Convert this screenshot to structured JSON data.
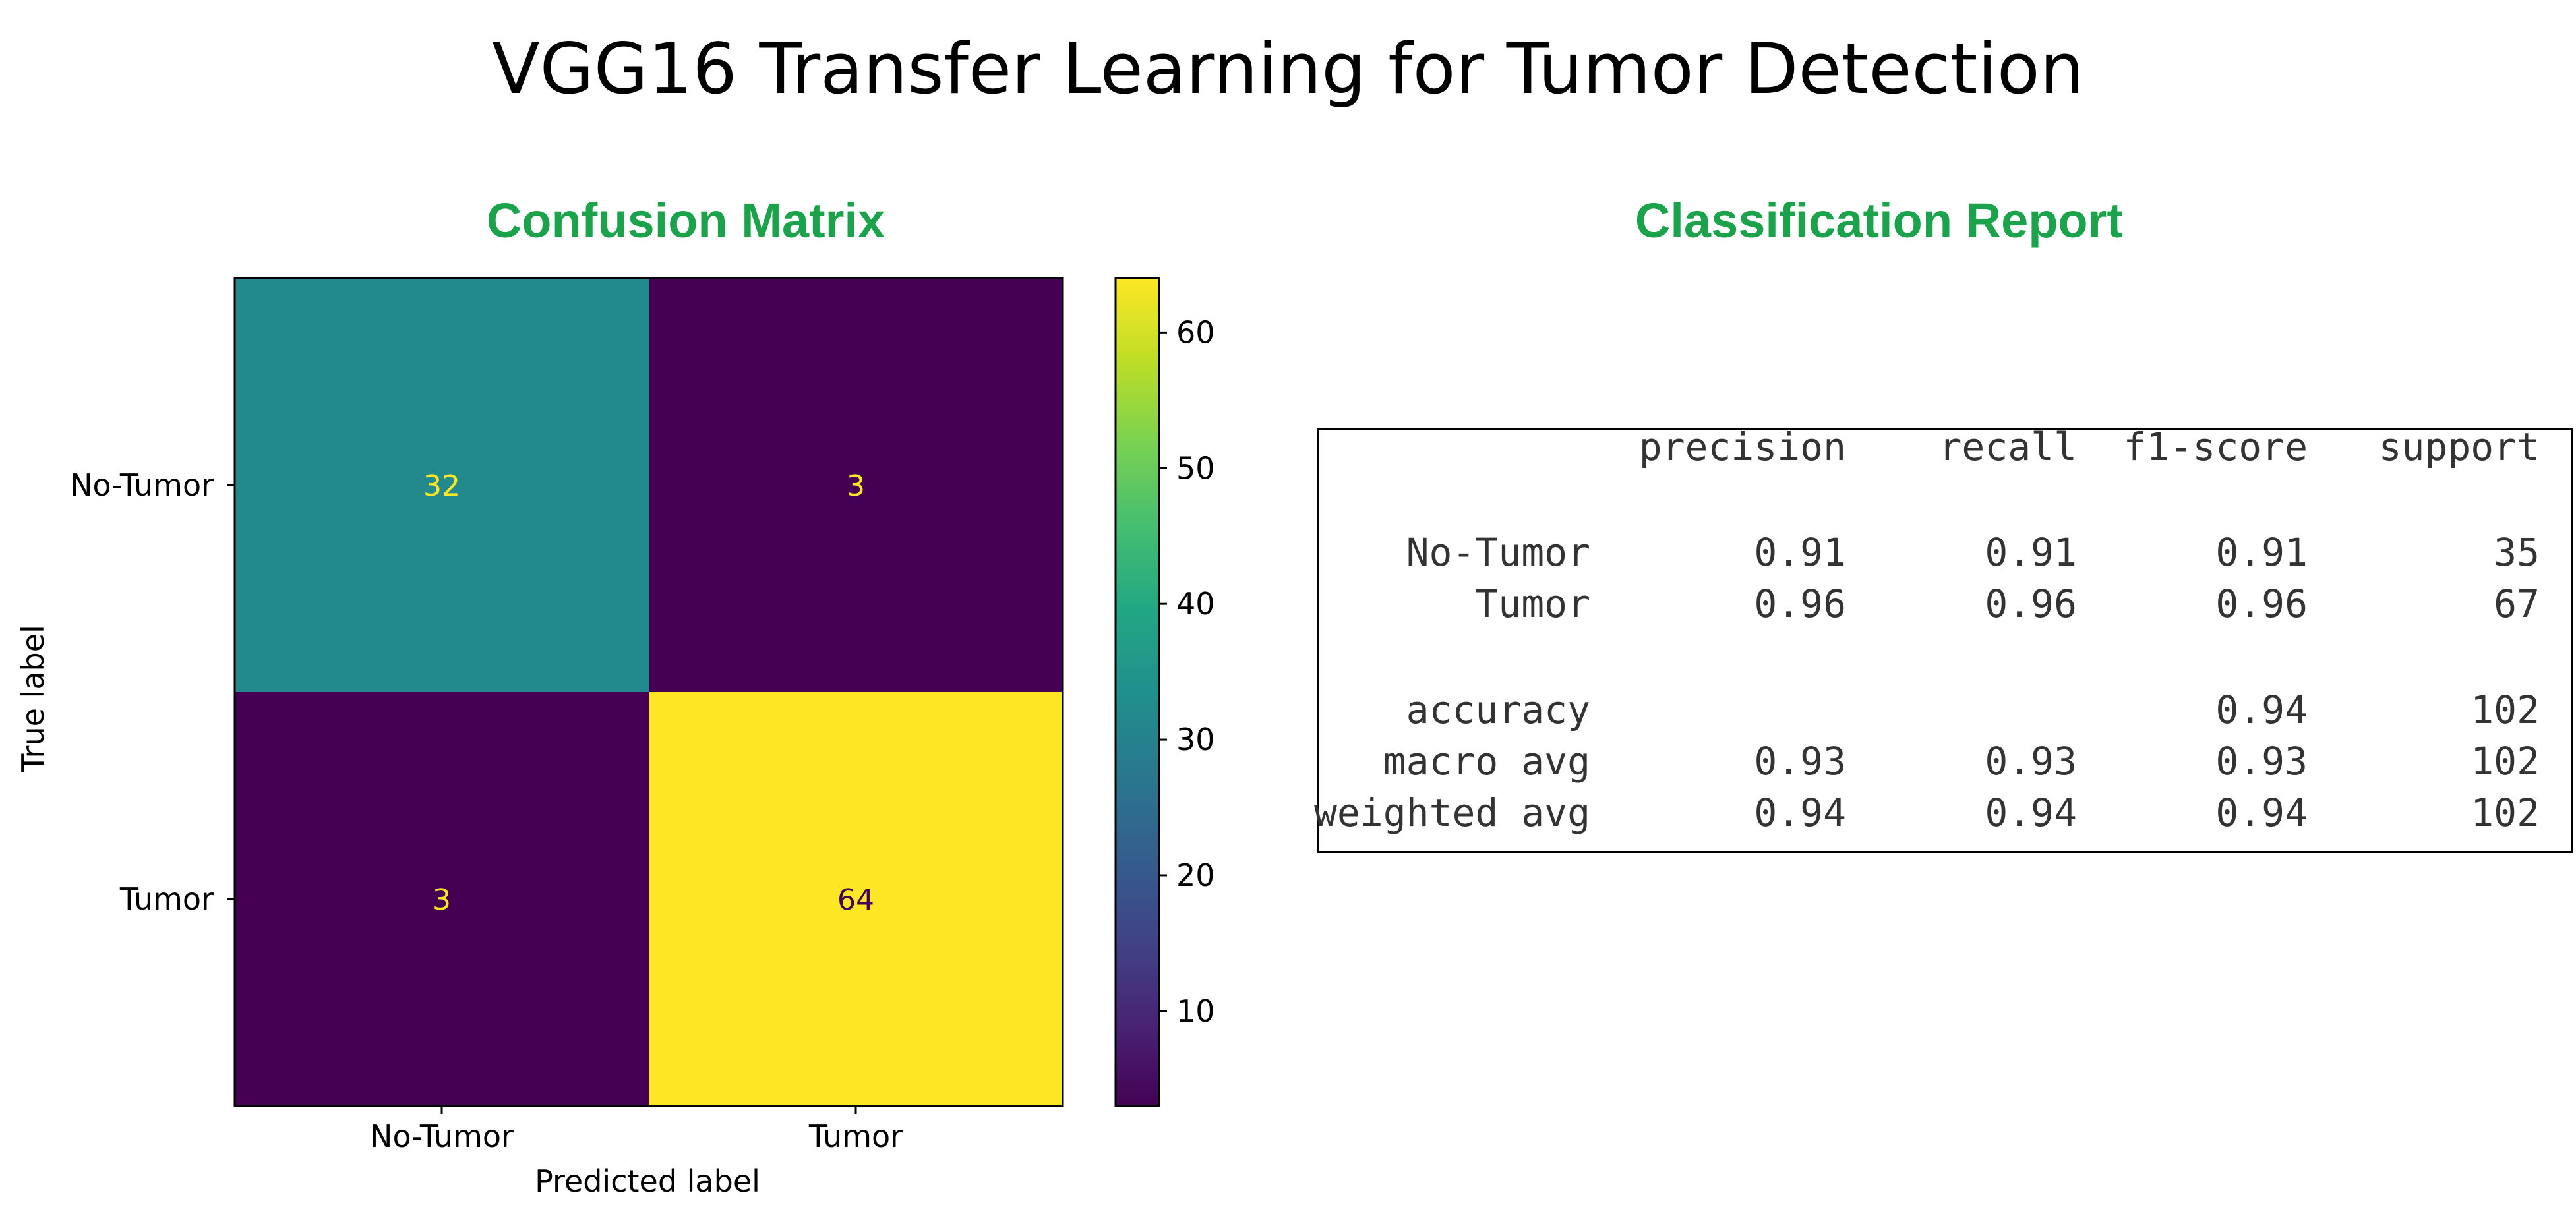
{
  "title": "VGG16 Transfer Learning for Tumor Detection",
  "confusion_title": "Confusion Matrix",
  "report_title": "Classification Report",
  "colors": {
    "section_title": "#1aa34a",
    "low": "#440154",
    "mid": "#21908d",
    "high": "#fde725"
  },
  "chart_data": [
    {
      "type": "heatmap",
      "title": "Confusion Matrix",
      "xlabel": "Predicted label",
      "ylabel": "True label",
      "x_categories": [
        "No-Tumor",
        "Tumor"
      ],
      "y_categories": [
        "No-Tumor",
        "Tumor"
      ],
      "matrix": [
        [
          32,
          3
        ],
        [
          3,
          64
        ]
      ],
      "colormap": "viridis",
      "colorbar": {
        "min": 3,
        "max": 64,
        "ticks": [
          10,
          20,
          30,
          40,
          50,
          60
        ]
      }
    },
    {
      "type": "table",
      "title": "Classification Report",
      "columns": [
        "",
        "precision",
        "recall",
        "f1-score",
        "support"
      ],
      "rows": [
        [
          "No-Tumor",
          "0.91",
          "0.91",
          "0.91",
          "35"
        ],
        [
          "Tumor",
          "0.96",
          "0.96",
          "0.96",
          "67"
        ],
        [
          "accuracy",
          "",
          "",
          "0.94",
          "102"
        ],
        [
          "macro avg",
          "0.93",
          "0.93",
          "0.93",
          "102"
        ],
        [
          "weighted avg",
          "0.94",
          "0.94",
          "0.94",
          "102"
        ]
      ]
    }
  ]
}
